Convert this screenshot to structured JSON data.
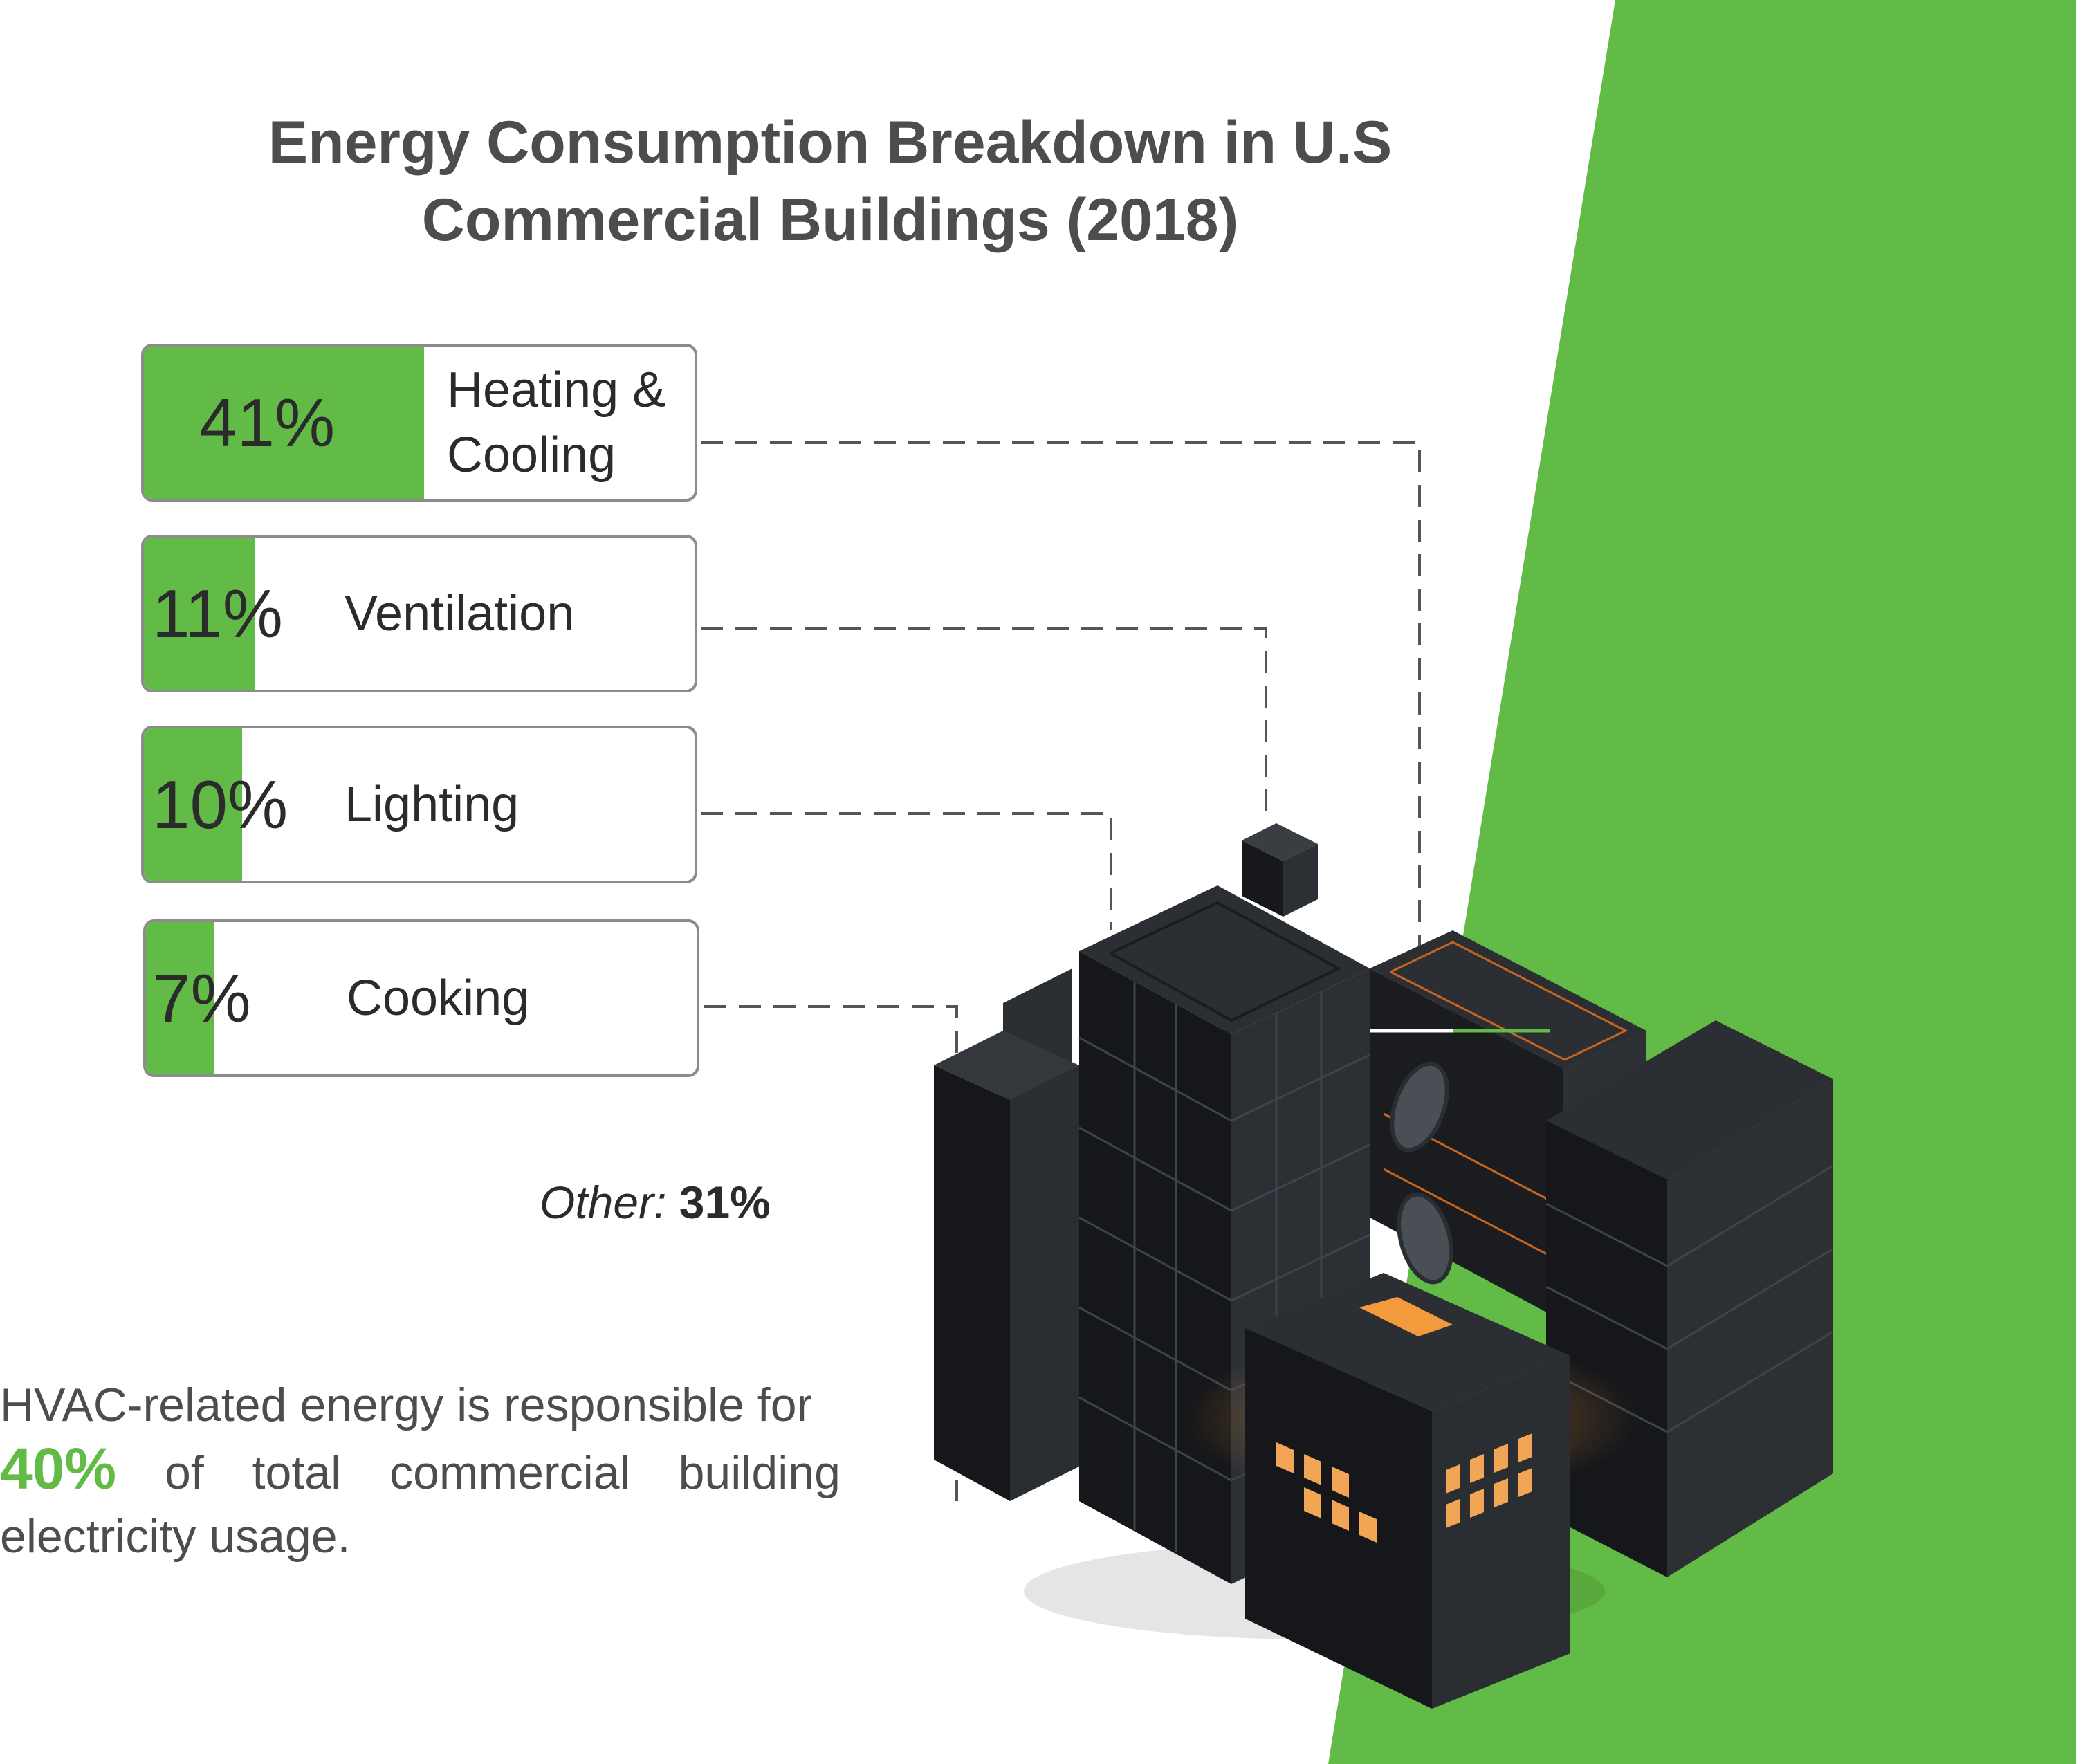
{
  "colors": {
    "accent": "#62bb46",
    "text_dark": "#2b2b2b",
    "text_gray": "#4d4d4f",
    "building": "#24272b",
    "glow": "#f39a3c"
  },
  "chart_data": {
    "type": "bar",
    "title": "Energy Consumption Breakdown in U.S Commercial Buildings (2018)",
    "title_lines": [
      "Energy Consumption Breakdown in U.S",
      "Commercial Buildings (2018)"
    ],
    "unit": "%",
    "items": [
      {
        "pct": "41%",
        "value": 41,
        "label_lines": [
          "Heating &",
          "Cooling"
        ]
      },
      {
        "pct": "11%",
        "value": 11,
        "label_lines": [
          "Ventilation"
        ]
      },
      {
        "pct": "10%",
        "value": 10,
        "label_lines": [
          "Lighting"
        ]
      },
      {
        "pct": "7%",
        "value": 7,
        "label_lines": [
          "Cooking"
        ]
      }
    ],
    "other": {
      "label": "Other:",
      "value": "31%"
    }
  },
  "note": {
    "line1": "HVAC-related energy is responsible for",
    "highlight": "40%",
    "line2_rest": "of total commercial building",
    "line3": "electricity usage."
  },
  "illustration": {
    "icon": "isometric-buildings-illustration"
  }
}
